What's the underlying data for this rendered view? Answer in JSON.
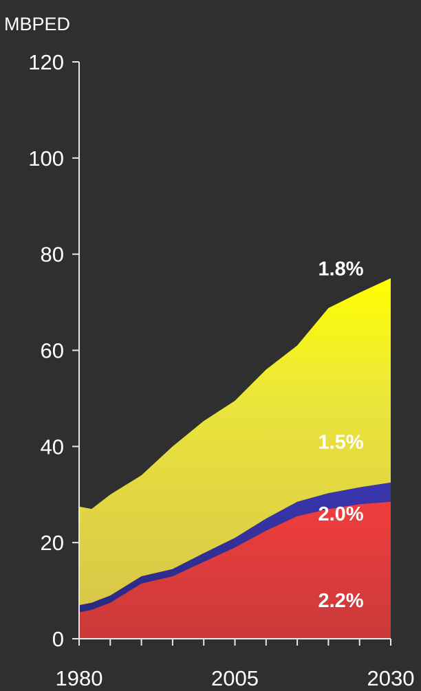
{
  "chart_data": {
    "type": "area",
    "stacked": true,
    "unit_label": "MBPED",
    "x": [
      1980,
      1982,
      1985,
      1990,
      1995,
      2000,
      2005,
      2010,
      2015,
      2020,
      2025,
      2030
    ],
    "x_ticks": [
      1980,
      2005,
      2030
    ],
    "x_tick_labels": [
      "1980",
      "2005",
      "2030"
    ],
    "xlim": [
      1980,
      2030
    ],
    "y_ticks": [
      0,
      20,
      40,
      60,
      80,
      100,
      120
    ],
    "y_tick_labels": [
      "0",
      "20",
      "40",
      "60",
      "80",
      "100",
      "120"
    ],
    "ylim": [
      0,
      120
    ],
    "grid": false,
    "series": [
      {
        "color": "#e8393c",
        "label": "2.2%",
        "values": [
          5.5,
          6.0,
          7.5,
          11.5,
          13.0,
          16.0,
          19.0,
          22.5,
          25.5,
          27.0,
          28.0,
          28.5
        ]
      },
      {
        "color": "#34309a",
        "label": "2.0%",
        "values": [
          1.5,
          1.5,
          1.5,
          1.5,
          1.5,
          1.8,
          2.0,
          2.5,
          3.0,
          3.3,
          3.5,
          4.0
        ]
      },
      {
        "color": "#e4d334",
        "label": "1.5%",
        "values": [
          20.5,
          19.5,
          21.0,
          21.0,
          25.5,
          27.5,
          28.5,
          31.0,
          32.5,
          38.5,
          40.5,
          42.5
        ]
      }
    ],
    "total_label": "1.8%",
    "label_positions_data": {
      "s0": [
        2022,
        8
      ],
      "s1": [
        2022,
        26
      ],
      "s2": [
        2022,
        41
      ],
      "total": [
        2022,
        77
      ]
    }
  }
}
